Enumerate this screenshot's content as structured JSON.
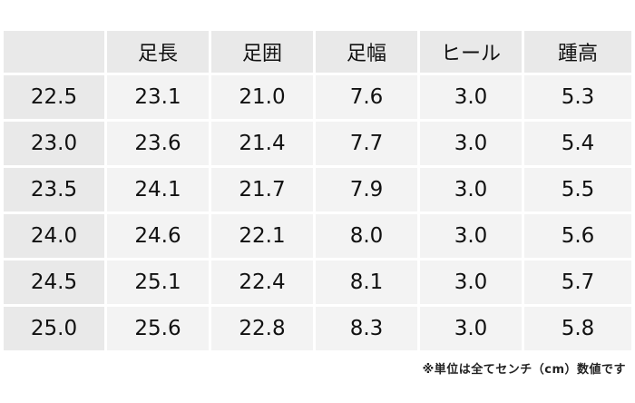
{
  "table": {
    "headers": [
      "",
      "足長",
      "足囲",
      "足幅",
      "ヒール",
      "踵高"
    ],
    "rows": [
      [
        "22.5",
        "23.1",
        "21.0",
        "7.6",
        "3.0",
        "5.3"
      ],
      [
        "23.0",
        "23.6",
        "21.4",
        "7.7",
        "3.0",
        "5.4"
      ],
      [
        "23.5",
        "24.1",
        "21.7",
        "7.9",
        "3.0",
        "5.5"
      ],
      [
        "24.0",
        "24.6",
        "22.1",
        "8.0",
        "3.0",
        "5.6"
      ],
      [
        "24.5",
        "25.1",
        "22.4",
        "8.1",
        "3.0",
        "5.7"
      ],
      [
        "25.0",
        "25.6",
        "22.8",
        "8.3",
        "3.0",
        "5.8"
      ]
    ]
  },
  "note": "※単位は全てセンチ（cm）数値です"
}
